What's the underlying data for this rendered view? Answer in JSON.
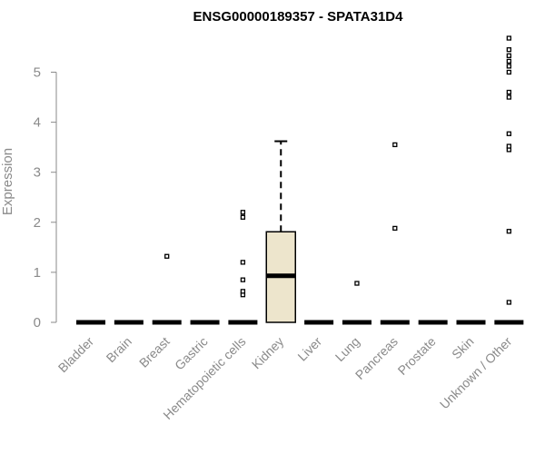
{
  "chart_data": {
    "type": "box",
    "title": "ENSG00000189357 - SPATA31D4",
    "ylabel": "Expression",
    "xlabel": "",
    "ylim": [
      0,
      5.8
    ],
    "yticks": [
      0,
      1,
      2,
      3,
      4,
      5
    ],
    "grid": false,
    "box_fill": "#ede5cc",
    "categories": [
      "Bladder",
      "Brain",
      "Breast",
      "Gastric",
      "Hematopoietic cells",
      "Kidney",
      "Liver",
      "Lung",
      "Pancreas",
      "Prostate",
      "Skin",
      "Unknown / Other"
    ],
    "series": [
      {
        "category": "Bladder",
        "q1": 0,
        "median": 0,
        "q3": 0,
        "whisker_low": 0,
        "whisker_high": 0,
        "outliers": []
      },
      {
        "category": "Brain",
        "q1": 0,
        "median": 0,
        "q3": 0,
        "whisker_low": 0,
        "whisker_high": 0,
        "outliers": []
      },
      {
        "category": "Breast",
        "q1": 0,
        "median": 0,
        "q3": 0,
        "whisker_low": 0,
        "whisker_high": 0,
        "outliers": [
          1.32
        ]
      },
      {
        "category": "Gastric",
        "q1": 0,
        "median": 0,
        "q3": 0,
        "whisker_low": 0,
        "whisker_high": 0,
        "outliers": []
      },
      {
        "category": "Hematopoietic cells",
        "q1": 0,
        "median": 0,
        "q3": 0,
        "whisker_low": 0,
        "whisker_high": 0,
        "outliers": [
          0.55,
          0.62,
          0.85,
          1.2,
          2.1,
          2.2
        ]
      },
      {
        "category": "Kidney",
        "q1": 0,
        "median": 0.93,
        "q3": 1.81,
        "whisker_low": 0,
        "whisker_high": 3.62,
        "outliers": []
      },
      {
        "category": "Liver",
        "q1": 0,
        "median": 0,
        "q3": 0,
        "whisker_low": 0,
        "whisker_high": 0,
        "outliers": []
      },
      {
        "category": "Lung",
        "q1": 0,
        "median": 0,
        "q3": 0,
        "whisker_low": 0,
        "whisker_high": 0,
        "outliers": [
          0.78
        ]
      },
      {
        "category": "Pancreas",
        "q1": 0,
        "median": 0,
        "q3": 0,
        "whisker_low": 0,
        "whisker_high": 0,
        "outliers": [
          1.88,
          3.55
        ]
      },
      {
        "category": "Prostate",
        "q1": 0,
        "median": 0,
        "q3": 0,
        "whisker_low": 0,
        "whisker_high": 0,
        "outliers": []
      },
      {
        "category": "Skin",
        "q1": 0,
        "median": 0,
        "q3": 0,
        "whisker_low": 0,
        "whisker_high": 0,
        "outliers": []
      },
      {
        "category": "Unknown / Other",
        "q1": 0,
        "median": 0,
        "q3": 0,
        "whisker_low": 0,
        "whisker_high": 0,
        "outliers": [
          0.4,
          1.82,
          3.45,
          3.52,
          3.77,
          4.5,
          4.6,
          5.0,
          5.12,
          5.22,
          5.33,
          5.45,
          5.68
        ]
      }
    ]
  }
}
